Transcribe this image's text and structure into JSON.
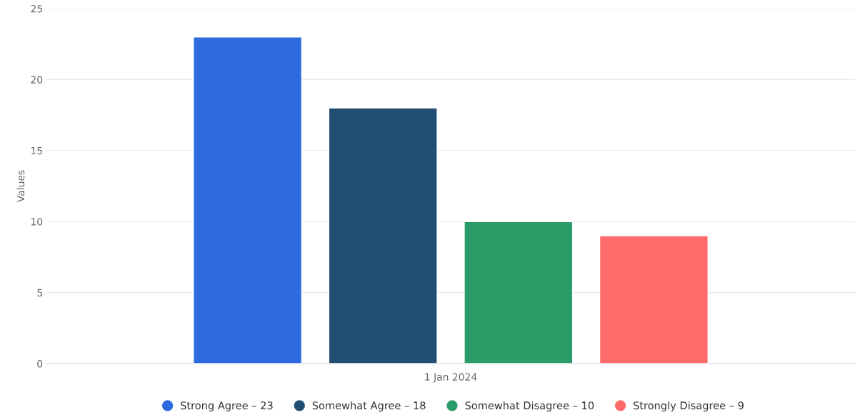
{
  "chart_data": {
    "type": "bar",
    "ylabel": "Values",
    "categories": [
      "1 Jan 2024"
    ],
    "series": [
      {
        "name": "Strong Agree – 23",
        "color": "#2d6ae0",
        "values": [
          23
        ]
      },
      {
        "name": "Somewhat Agree – 18",
        "color": "#214e72",
        "values": [
          18
        ]
      },
      {
        "name": "Somewhat Disagree – 10",
        "color": "#2b9c68",
        "values": [
          10
        ]
      },
      {
        "name": "Strongly Disagree – 9",
        "color": "#ff6b6b",
        "values": [
          9
        ]
      }
    ],
    "ylim": [
      0,
      25
    ],
    "yticks": [
      0,
      5,
      10,
      15,
      20,
      25
    ],
    "grid": "y",
    "legend": "bottom"
  }
}
